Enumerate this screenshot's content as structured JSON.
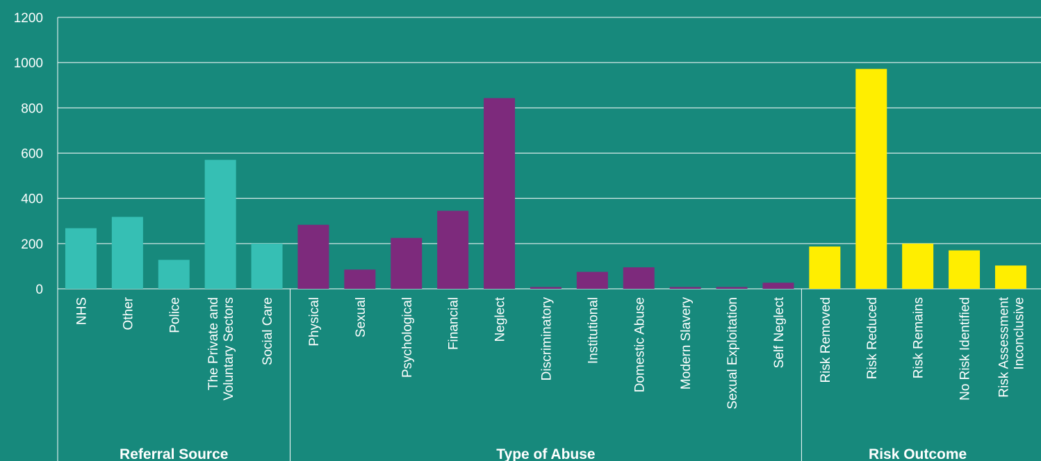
{
  "colors": {
    "background": "#17897c",
    "gridline": "#ffffff",
    "referral_source": "#36bfb4",
    "type_of_abuse": "#7d2a7c",
    "risk_outcome": "#ffee00"
  },
  "chart_data": {
    "type": "bar",
    "title": "",
    "xlabel": "",
    "ylabel": "",
    "ylim": [
      0,
      1200
    ],
    "yticks": [
      "0",
      "200",
      "400",
      "600",
      "800",
      "1000",
      "1200"
    ],
    "grid": true,
    "legend": "none",
    "groups": [
      {
        "name": "Referral Source",
        "color_key": "referral_source",
        "categories": [
          [
            "NHS"
          ],
          [
            "Other"
          ],
          [
            "Police"
          ],
          [
            "The Private and",
            "Voluntary Sectors"
          ],
          [
            "Social Care"
          ]
        ],
        "values": [
          268,
          318,
          128,
          570,
          200
        ]
      },
      {
        "name": "Type of Abuse",
        "color_key": "type_of_abuse",
        "categories": [
          [
            "Physical"
          ],
          [
            "Sexual"
          ],
          [
            "Psychological"
          ],
          [
            "Financial"
          ],
          [
            "Neglect"
          ],
          [
            "Discriminatory"
          ],
          [
            "Institutional"
          ],
          [
            "Domestic Abuse"
          ],
          [
            "Modern Slavery"
          ],
          [
            "Sexual Exploitation"
          ],
          [
            "Self Neglect"
          ]
        ],
        "values": [
          283,
          85,
          225,
          345,
          843,
          8,
          75,
          95,
          8,
          8,
          27
        ]
      },
      {
        "name": "Risk Outcome",
        "color_key": "risk_outcome",
        "categories": [
          [
            "Risk Removed"
          ],
          [
            "Risk Reduced"
          ],
          [
            "Risk Remains"
          ],
          [
            "No Risk Identified"
          ],
          [
            "Risk Assessment",
            "Inconclusive"
          ]
        ],
        "values": [
          187,
          972,
          200,
          170,
          103
        ]
      }
    ]
  }
}
